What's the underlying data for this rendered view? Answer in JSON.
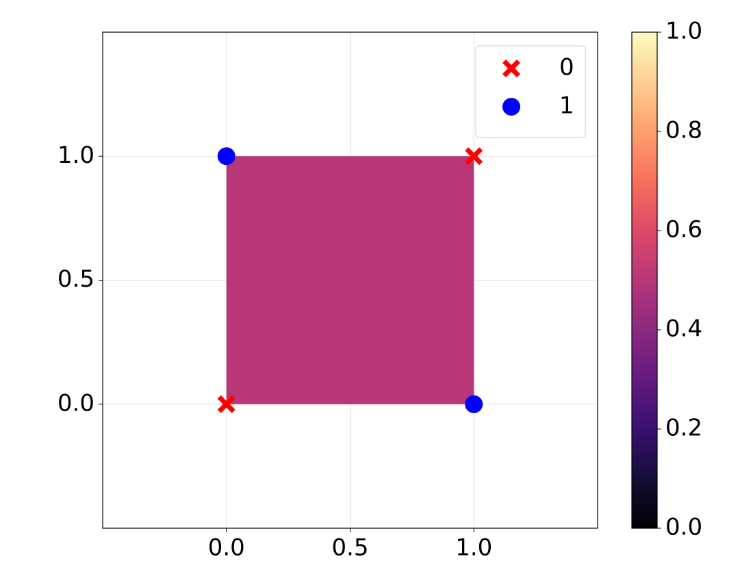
{
  "chart_data": {
    "type": "scatter",
    "xlim": [
      -0.5,
      1.5
    ],
    "ylim": [
      -0.5,
      1.5
    ],
    "xticks": [
      {
        "value": 0,
        "label": "0.0"
      },
      {
        "value": 0.5,
        "label": "0.5"
      },
      {
        "value": 1,
        "label": "1.0"
      }
    ],
    "yticks": [
      {
        "value": 0,
        "label": "0.0"
      },
      {
        "value": 0.5,
        "label": "0.5"
      },
      {
        "value": 1,
        "label": "1.0"
      }
    ],
    "grid": true,
    "legend": "upper right",
    "series": [
      {
        "name": "0",
        "color": "#ff0000",
        "marker": "X",
        "x": [
          0,
          1
        ],
        "values": [
          0,
          1
        ]
      },
      {
        "name": "1",
        "color": "#0000ff",
        "marker": "o",
        "x": [
          0,
          1
        ],
        "values": [
          1,
          0
        ]
      }
    ],
    "heatmap": {
      "x_edges": [
        0,
        1
      ],
      "y_edges": [
        0,
        1
      ],
      "values": [
        [
          0.5
        ]
      ],
      "colormap": "magma",
      "clim": [
        0,
        1
      ],
      "cticks": [
        {
          "value": 0,
          "label": "0.0"
        },
        {
          "value": 0.2,
          "label": "0.2"
        },
        {
          "value": 0.4,
          "label": "0.4"
        },
        {
          "value": 0.6,
          "label": "0.6"
        },
        {
          "value": 0.8,
          "label": "0.8"
        },
        {
          "value": 1,
          "label": "1.0"
        }
      ]
    }
  }
}
